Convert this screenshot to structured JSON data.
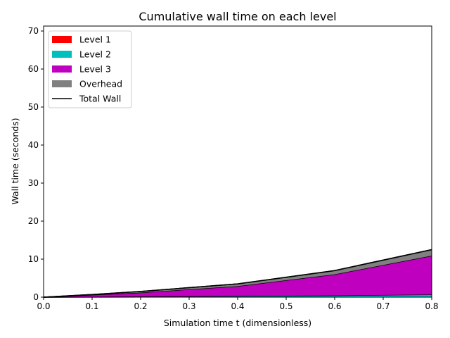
{
  "chart_data": {
    "type": "area",
    "title": "Cumulative wall time on each level",
    "xlabel": "Simulation time t (dimensionless)",
    "ylabel": "Wall time (seconds)",
    "xlim": [
      0,
      0.8
    ],
    "ylim": [
      0,
      71.3
    ],
    "xticks": [
      "0.0",
      "0.1",
      "0.2",
      "0.3",
      "0.4",
      "0.5",
      "0.6",
      "0.7",
      "0.8"
    ],
    "xtick_values": [
      0,
      0.1,
      0.2,
      0.3,
      0.4,
      0.5,
      0.6,
      0.7,
      0.8
    ],
    "yticks": [
      "0",
      "10",
      "20",
      "30",
      "40",
      "50",
      "60",
      "70"
    ],
    "ytick_values": [
      0,
      10,
      20,
      30,
      40,
      50,
      60,
      70
    ],
    "grid": false,
    "legend_position": "top-left",
    "x": [
      0,
      0.1,
      0.2,
      0.4,
      0.6,
      0.8
    ],
    "series": [
      {
        "name": "Level 1",
        "color": "#ff0000",
        "values": [
          0,
          0.02,
          0.04,
          0.06,
          0.08,
          0.1
        ]
      },
      {
        "name": "Level 2",
        "color": "#00bfbf",
        "values": [
          0,
          0.08,
          0.16,
          0.24,
          0.37,
          0.6
        ]
      },
      {
        "name": "Level 3",
        "color": "#bf00bf",
        "values": [
          0,
          0.5,
          1.0,
          2.6,
          5.55,
          10.2
        ]
      },
      {
        "name": "Overhead",
        "color": "#808080",
        "values": [
          0,
          0.1,
          0.3,
          0.6,
          1.0,
          1.6
        ]
      }
    ],
    "total_wall": {
      "name": "Total Wall",
      "color": "#000000",
      "values": [
        0,
        0.7,
        1.5,
        3.5,
        7.0,
        12.5
      ]
    }
  }
}
